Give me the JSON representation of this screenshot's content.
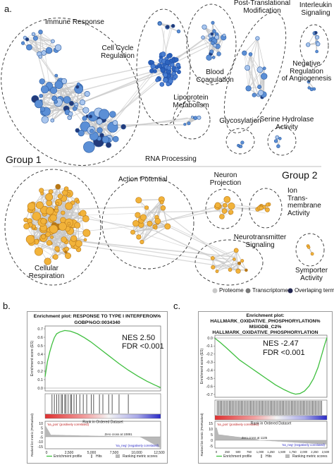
{
  "panel_a": {
    "letter": "a.",
    "group1": "Group 1",
    "group2": "Group 2",
    "clusters": {
      "immune": "Immune Response",
      "cell_cycle": "Cell Cycle\nRegulation",
      "blood": "Blood\nCoagulation",
      "ptm": "Post-Translational\nModification",
      "interleukin": "Interleukin\nSignaling",
      "angio": "Negative\nRegulation\nof Angiogenesis",
      "lipo": "Lipoprotein\nMetabolism",
      "glyco": "Glycosylation",
      "serine": "Serine Hydrolase\nActivity",
      "rna": "RNA Processing",
      "action": "Action Potential",
      "neuron": "Neuron\nProjection",
      "ion": "Ion\nTrans-\nmembrane\nActivity",
      "neurotrans": "Neurotransmitter\nSignaling",
      "symporter": "Symporter\nActivity",
      "respiration": "Cellular\nRespiration"
    },
    "legend": [
      "Proteome",
      "Transcriptome",
      "Overlaping terms"
    ],
    "colors": {
      "proteome": "#c8c8c8",
      "transcriptome": "#7a7a7a",
      "overlap": "#22264f",
      "blue": "#5b8fd6",
      "blue_dark": "#1f4fa8",
      "orange": "#f2b33a",
      "orange_edge": "#b9791a",
      "edge": "#c8c8c8"
    }
  },
  "panel_b": {
    "letter": "b.",
    "title1": "Enrichment plot: RESPONSE TO TYPE I INTERFERON%",
    "title2": "GOBP%GO:0034340",
    "nes": "NES 2.50",
    "fdr": "FDR <0.001",
    "es_axis": "Enrichment score (ES)",
    "rank_axis": "Ranked list metric (PreRanked)",
    "x_axis": "Rank in Ordered Dataset",
    "pos_label": "'na_pos' (positively correlated)",
    "neg_label": "'na_neg' (negatively correlated)",
    "zero_cross": "Zero cross at 10891",
    "es_ticks": [
      "0.7",
      "0.6",
      "0.5",
      "0.4",
      "0.3",
      "0.2",
      "0.1",
      "0.0"
    ],
    "rank_ticks": [
      "10",
      "5",
      "0",
      "-5",
      "-10",
      "-15"
    ],
    "x_ticks": [
      "0",
      "2,500",
      "5,000",
      "7,500",
      "10,000",
      "12,500"
    ],
    "legend": [
      "Enrichment profile",
      "Hits",
      "Ranking metric scores"
    ]
  },
  "panel_c": {
    "letter": "c.",
    "title1": "Enrichment plot:",
    "title2": "HALLMARK_OXIDATIVE_PHOSPHORYLATION%",
    "title3": "MSIGDB_C2%",
    "title4": "HALLMARK_OXIDATIVE_PHOSPHORYLATION",
    "nes": "NES -2.47",
    "fdr": "FDR <0.001",
    "es_axis": "Enrichment score (ES)",
    "rank_axis": "Ranked list metric (PreRanked)",
    "x_axis": "Rank in Ordered Dataset",
    "pos_label": "'na_pos' (positively correlated)",
    "neg_label": "'na_neg' (negatively correlated)",
    "zero_cross": "Zero cross at 1135",
    "es_ticks": [
      "0.0",
      "-0.1",
      "-0.2",
      "-0.3",
      "-0.4",
      "-0.5",
      "-0.6",
      "-0.7"
    ],
    "rank_ticks": [
      "15",
      "10",
      "5",
      "0",
      "-5"
    ],
    "x_ticks": [
      "0",
      "250",
      "500",
      "750",
      "1,000",
      "1,250",
      "1,500",
      "1,750",
      "2,000",
      "2,250",
      "2,500"
    ],
    "legend": [
      "Enrichment profile",
      "Hits",
      "Ranking metric scores"
    ]
  }
}
